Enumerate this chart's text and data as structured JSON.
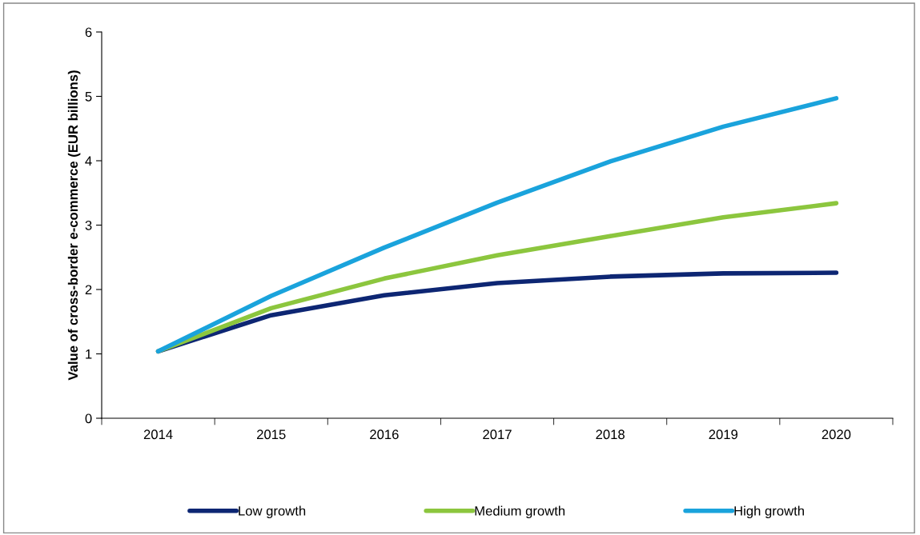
{
  "chart_data": {
    "type": "line",
    "ylabel": "Value of cross-border e-commerce (EUR billions)",
    "categories": [
      "2014",
      "2015",
      "2016",
      "2017",
      "2018",
      "2019",
      "2020"
    ],
    "series": [
      {
        "name": "Low growth",
        "color": "#0d2673",
        "values": [
          1.04,
          1.6,
          1.91,
          2.1,
          2.2,
          2.25,
          2.26
        ]
      },
      {
        "name": "Medium growth",
        "color": "#8cc63e",
        "values": [
          1.04,
          1.71,
          2.17,
          2.53,
          2.83,
          3.12,
          3.34
        ]
      },
      {
        "name": "High growth",
        "color": "#1aa3dc",
        "values": [
          1.04,
          1.9,
          2.65,
          3.35,
          3.99,
          4.53,
          4.97
        ]
      }
    ],
    "ylim": [
      0,
      6
    ],
    "yticks": [
      0,
      1,
      2,
      3,
      4,
      5,
      6
    ],
    "grid": false,
    "legend": "bottom",
    "marker": "none",
    "line_style": "solid"
  }
}
